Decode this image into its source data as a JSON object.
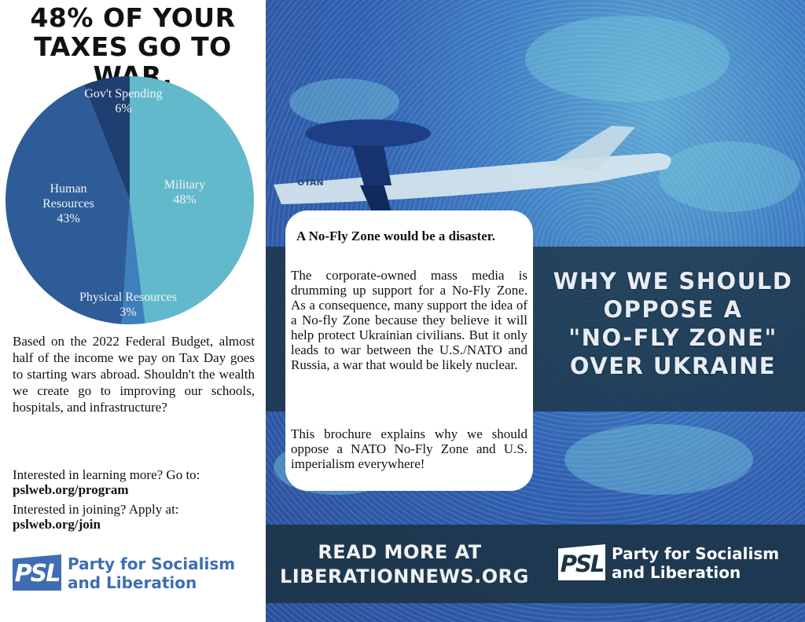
{
  "left_panel": {
    "headline_line1": "48% OF YOUR",
    "headline_line2": "TAXES GO TO WAR.",
    "chart_data": {
      "type": "pie",
      "title": "",
      "categories": [
        "Military",
        "Physical Resources",
        "Human Resources",
        "Gov't Spending"
      ],
      "values": [
        48,
        3,
        43,
        6
      ],
      "labels": [
        {
          "lines": [
            "Military",
            "48%"
          ]
        },
        {
          "lines": [
            "Physical Resources",
            "3%"
          ]
        },
        {
          "lines": [
            "Human",
            "Resources",
            "43%"
          ]
        },
        {
          "lines": [
            "Gov't Spending",
            "6%"
          ]
        }
      ],
      "colors": [
        "#62b9cc",
        "#3f7fbd",
        "#2d5c99",
        "#1f3f73"
      ]
    },
    "body_text": "Based on the 2022 Federal Budget, almost half of the income we pay on Tax Day goes to starting wars abroad. Shouldn't the wealth we create go to improving our schools, hospitals, and infrastructure?",
    "cta_learn_text": "Interested in learning more? Go to:",
    "cta_learn_link": "pslweb.org/program",
    "cta_join_text": "Interested in joining? Apply at:",
    "cta_join_link": "pslweb.org/join",
    "logo_mark": "PSL",
    "logo_name_line1": "Party for Socialism",
    "logo_name_line2": "and Liberation"
  },
  "right_panel": {
    "card_title": "A No-Fly Zone would be a disaster.",
    "card_paragraph1": "The corporate-owned mass media is drumming up support for a No-Fly Zone. As a consequence, many support the idea of a No-fly Zone because they believe it will help protect Ukrainian civilians. But it only leads to war between the U.S./NATO and Russia, a war that would be likely nuclear.",
    "card_paragraph2": "This brochure explains why we should oppose a NATO No-Fly Zone and U.S. imperialism everywhere!",
    "title_line1": "WHY WE SHOULD",
    "title_line2": "OPPOSE A",
    "title_line3": "\"NO-FLY ZONE\"",
    "title_line4": "OVER UKRAINE",
    "plane_marking": "OTAN",
    "read_more_line1": "READ MORE AT",
    "read_more_line2": "LIBERATIONNEWS.ORG",
    "logo_mark": "PSL",
    "logo_name_line1": "Party for Socialism",
    "logo_name_line2": "and Liberation"
  },
  "colors": {
    "psl_blue": "#3f6db3",
    "band_dark": "#1c3446",
    "background_blue": "#2f5fb0"
  }
}
